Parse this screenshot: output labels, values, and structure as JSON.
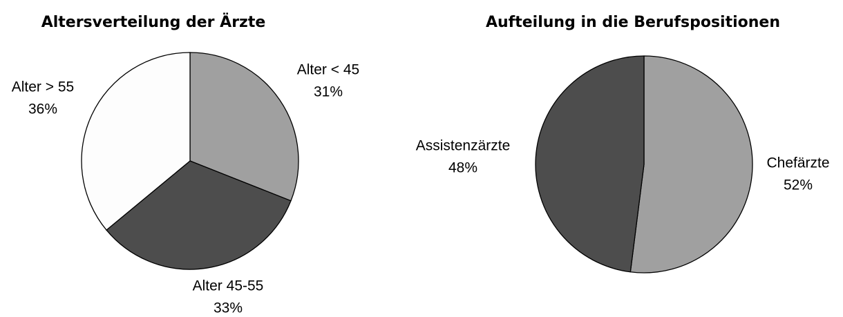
{
  "chart_data": [
    {
      "type": "pie",
      "title": "Altersverteilung der Ärzte",
      "categories": [
        "Alter < 45",
        "Alter 45-55",
        "Alter > 55"
      ],
      "values": [
        31,
        33,
        36
      ],
      "value_labels": [
        "31%",
        "33%",
        "36%"
      ],
      "colors": [
        "#a0a0a0",
        "#4d4d4d",
        "#fdfdfd"
      ]
    },
    {
      "type": "pie",
      "title": "Aufteilung in die Berufspositionen",
      "categories": [
        "Chefärzte",
        "Assistenzärzte"
      ],
      "values": [
        52,
        48
      ],
      "value_labels": [
        "52%",
        "48%"
      ],
      "colors": [
        "#a0a0a0",
        "#4d4d4d"
      ]
    }
  ]
}
